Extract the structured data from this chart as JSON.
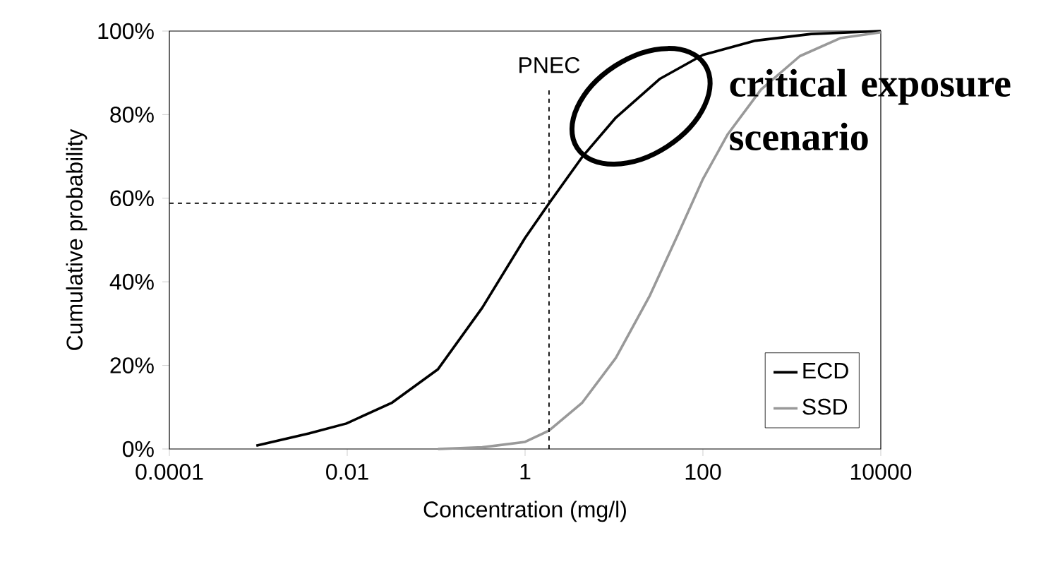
{
  "chart_data": {
    "type": "line",
    "xlabel": "Concentration (mg/l)",
    "ylabel": "Cumulative probability",
    "log": "x",
    "xlim": [
      0.0001,
      10000
    ],
    "ylim": [
      0,
      100
    ],
    "xticks": [
      {
        "value": 0.0001,
        "label": "0.0001"
      },
      {
        "value": 0.01,
        "label": "0.01"
      },
      {
        "value": 1,
        "label": "1"
      },
      {
        "value": 100,
        "label": "100"
      },
      {
        "value": 10000,
        "label": "10000"
      }
    ],
    "yticks": [
      {
        "value": 0,
        "label": "0%"
      },
      {
        "value": 20,
        "label": "20%"
      },
      {
        "value": 40,
        "label": "40%"
      },
      {
        "value": 60,
        "label": "60%"
      },
      {
        "value": 80,
        "label": "80%"
      },
      {
        "value": 100,
        "label": "100%"
      }
    ],
    "grid": false,
    "legend": "bottom right",
    "marker": "none",
    "line_style": "solid",
    "series": [
      {
        "name": "ECD",
        "color": "#000000",
        "x": [
          0.00095,
          0.0037,
          0.0098,
          0.032,
          0.105,
          0.33,
          1,
          1.86,
          4.4,
          10.5,
          33,
          100,
          390,
          1650,
          10000
        ],
        "values": [
          0.8,
          3.7,
          6.1,
          11.1,
          19.1,
          33.8,
          50.5,
          58.8,
          69.9,
          79.3,
          88.6,
          94.3,
          97.7,
          99.3,
          100
        ]
      },
      {
        "name": "SSD",
        "color": "#999999",
        "x": [
          0.105,
          0.33,
          1,
          1.86,
          4.4,
          10.5,
          25,
          52,
          100,
          190,
          450,
          1230,
          3500,
          10000
        ],
        "values": [
          0,
          0.4,
          1.7,
          4.4,
          11.1,
          21.8,
          36.5,
          51.2,
          64.6,
          75.3,
          86,
          94,
          98.3,
          99.7
        ]
      }
    ],
    "ref_lines": [
      {
        "axis": "x",
        "value": 1.86,
        "label": "PNEC",
        "line_style": "dashed"
      },
      {
        "axis": "y",
        "value": 58.8,
        "label": null,
        "line_style": "dashed"
      }
    ],
    "annotations": [
      "critical exposure scenario"
    ]
  }
}
